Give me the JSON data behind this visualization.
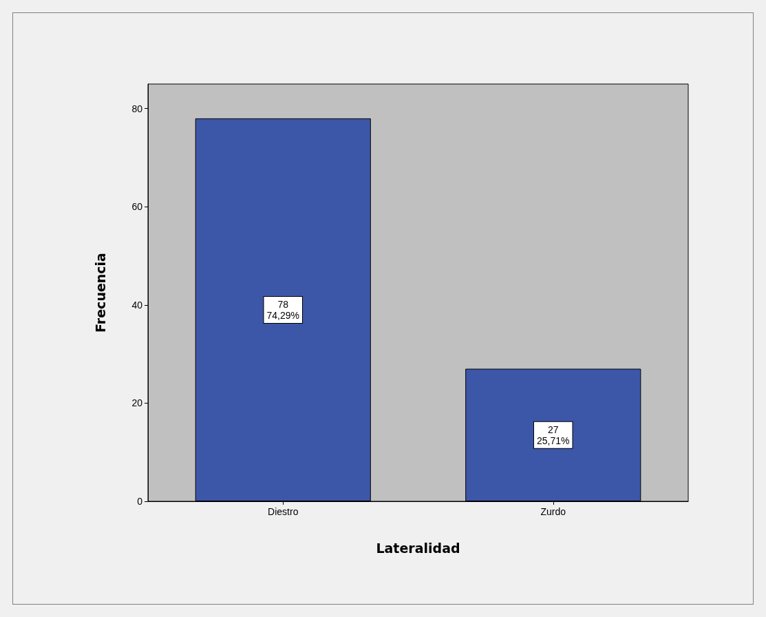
{
  "chart_data": {
    "type": "bar",
    "xlabel": "Lateralidad",
    "ylabel": "Frecuencia",
    "categories": [
      "Diestro",
      "Zurdo"
    ],
    "values": [
      78,
      27
    ],
    "color": "#3c56a8",
    "value_labels": [
      "78\n74,29%",
      "27\n25,71%"
    ],
    "ylim": [
      0,
      85
    ],
    "yticks": [
      0,
      20,
      40,
      60,
      80
    ],
    "grid": false
  }
}
